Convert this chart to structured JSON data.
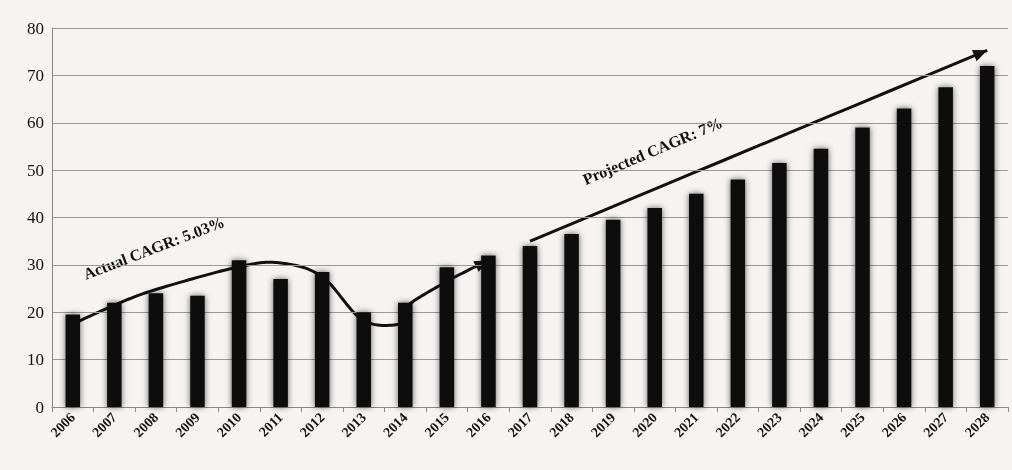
{
  "chart_data": {
    "type": "bar",
    "categories": [
      "2006",
      "2007",
      "2008",
      "2009",
      "2010",
      "2011",
      "2012",
      "2013",
      "2014",
      "2015",
      "2016",
      "2017",
      "2018",
      "2019",
      "2020",
      "2021",
      "2022",
      "2023",
      "2024",
      "2025",
      "2026",
      "2027",
      "2028"
    ],
    "values": [
      19.5,
      22,
      24,
      23.5,
      31,
      27,
      28.5,
      20,
      22,
      29.5,
      32,
      34,
      36.5,
      39.5,
      42,
      45,
      48,
      51.5,
      54.5,
      59,
      63,
      67.5,
      72
    ],
    "color": "#111111",
    "ylim": [
      0,
      80
    ],
    "yticks": [
      0,
      10,
      20,
      30,
      40,
      50,
      60,
      70,
      80
    ],
    "grid": "y",
    "annotations": [
      "Actual CAGR: 5.03%",
      "Projected CAGR: 7%"
    ]
  }
}
